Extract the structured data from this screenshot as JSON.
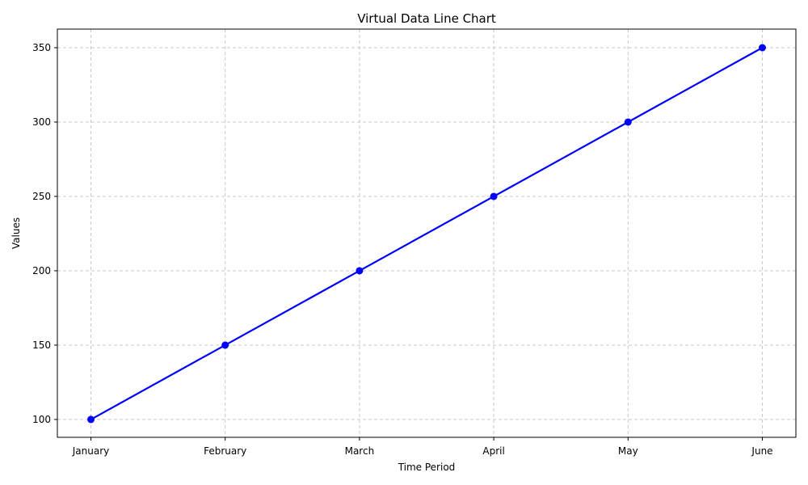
{
  "chart_data": {
    "type": "line",
    "title": "Virtual Data Line Chart",
    "xlabel": "Time Period",
    "ylabel": "Values",
    "categories": [
      "January",
      "February",
      "March",
      "April",
      "May",
      "June"
    ],
    "series": [
      {
        "values": [
          100,
          150,
          200,
          250,
          300,
          350
        ],
        "color": "#0000ff",
        "marker": "circle"
      }
    ],
    "ylim": [
      88,
      362.5
    ],
    "yticks": [
      100,
      150,
      200,
      250,
      300,
      350
    ],
    "grid": true,
    "grid_color": "#c8c8c8",
    "grid_style": "dashed"
  }
}
